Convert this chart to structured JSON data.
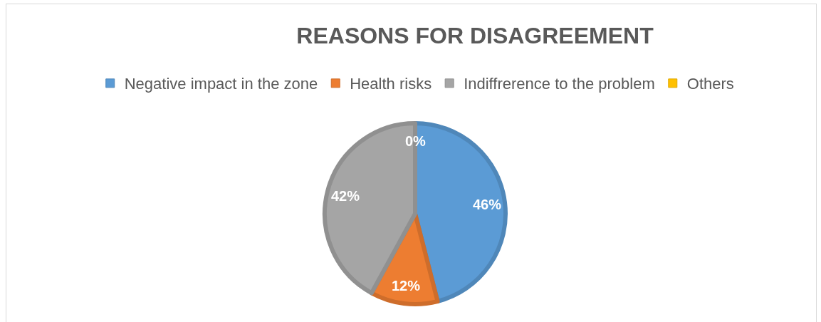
{
  "chart_data": {
    "type": "pie",
    "title": "REASONS FOR DISAGREEMENT",
    "categories": [
      "Negative impact in the zone",
      "Health risks",
      "Indiffrerence to the problem",
      "Others"
    ],
    "values": [
      46,
      12,
      42,
      0
    ],
    "colors": [
      "#5b9bd5",
      "#ed7d31",
      "#a5a5a5",
      "#ffc000"
    ],
    "value_labels": [
      "46%",
      "12%",
      "42%",
      "0%"
    ],
    "legend": "top"
  }
}
